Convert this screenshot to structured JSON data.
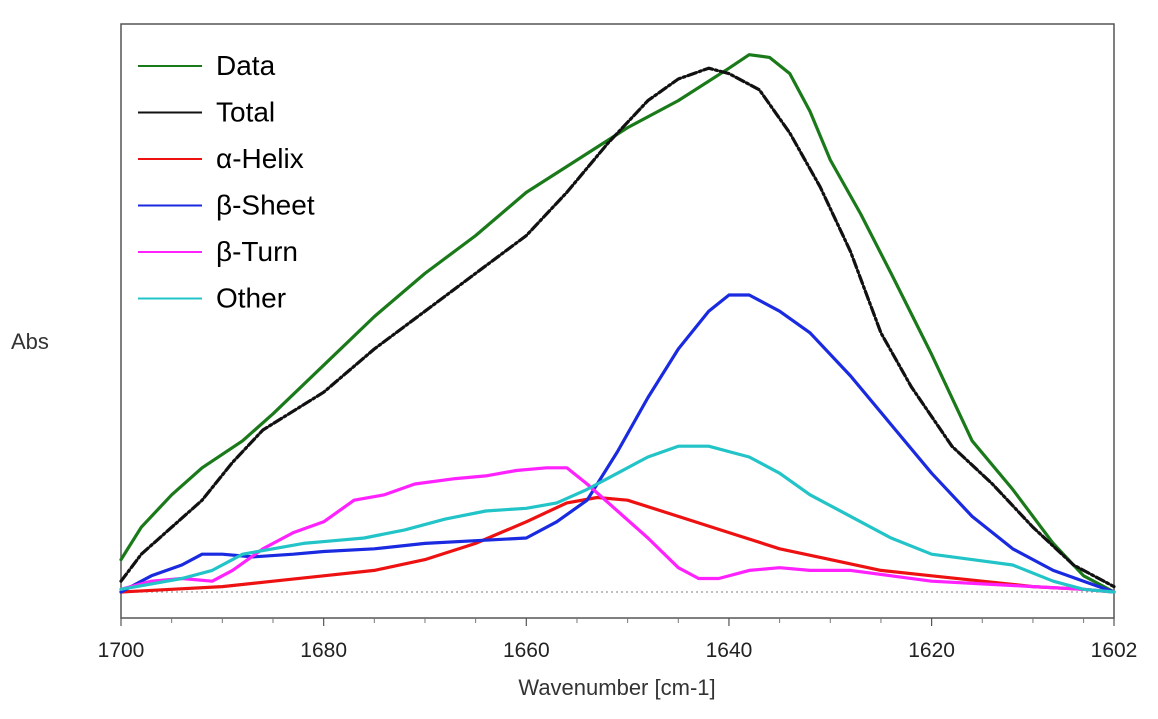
{
  "chart_data": {
    "type": "line",
    "title": "",
    "xlabel": "Wavenumber [cm-1]",
    "ylabel": "Abs",
    "xlim": [
      1700,
      1602
    ],
    "ylim": [
      0,
      1
    ],
    "x_reversed": true,
    "x_ticks": [
      1700,
      1680,
      1660,
      1640,
      1620,
      1602
    ],
    "x_tick_labels": [
      "1700",
      "1680",
      "1660",
      "1640",
      "1620",
      "1602"
    ],
    "grid": false,
    "legend": "top-left",
    "baseline_dotted": true,
    "series": [
      {
        "name": "Data",
        "color": "#1a7a1a",
        "dash": "solid",
        "points": [
          [
            1700,
            0.06
          ],
          [
            1698,
            0.12
          ],
          [
            1695,
            0.18
          ],
          [
            1692,
            0.23
          ],
          [
            1688,
            0.28
          ],
          [
            1685,
            0.33
          ],
          [
            1680,
            0.42
          ],
          [
            1675,
            0.51
          ],
          [
            1670,
            0.59
          ],
          [
            1665,
            0.66
          ],
          [
            1660,
            0.74
          ],
          [
            1655,
            0.8
          ],
          [
            1650,
            0.86
          ],
          [
            1645,
            0.91
          ],
          [
            1640,
            0.97
          ],
          [
            1638,
            0.995
          ],
          [
            1636,
            0.99
          ],
          [
            1634,
            0.96
          ],
          [
            1632,
            0.89
          ],
          [
            1630,
            0.8
          ],
          [
            1627,
            0.7
          ],
          [
            1624,
            0.59
          ],
          [
            1620,
            0.44
          ],
          [
            1616,
            0.28
          ],
          [
            1612,
            0.19
          ],
          [
            1608,
            0.09
          ],
          [
            1605,
            0.03
          ],
          [
            1602,
            0.0
          ]
        ]
      },
      {
        "name": "Total",
        "color": "#111111",
        "dash": "dashdot",
        "points": [
          [
            1700,
            0.02
          ],
          [
            1698,
            0.07
          ],
          [
            1695,
            0.12
          ],
          [
            1692,
            0.17
          ],
          [
            1689,
            0.24
          ],
          [
            1686,
            0.3
          ],
          [
            1680,
            0.37
          ],
          [
            1675,
            0.45
          ],
          [
            1670,
            0.52
          ],
          [
            1665,
            0.59
          ],
          [
            1660,
            0.66
          ],
          [
            1656,
            0.74
          ],
          [
            1652,
            0.83
          ],
          [
            1648,
            0.91
          ],
          [
            1645,
            0.95
          ],
          [
            1642,
            0.97
          ],
          [
            1640,
            0.96
          ],
          [
            1637,
            0.93
          ],
          [
            1634,
            0.85
          ],
          [
            1631,
            0.75
          ],
          [
            1628,
            0.63
          ],
          [
            1625,
            0.48
          ],
          [
            1622,
            0.38
          ],
          [
            1618,
            0.27
          ],
          [
            1614,
            0.2
          ],
          [
            1610,
            0.12
          ],
          [
            1606,
            0.05
          ],
          [
            1602,
            0.01
          ]
        ]
      },
      {
        "name": "α-Helix",
        "color": "#ee1111",
        "dash": "solid",
        "points": [
          [
            1700,
            0.0
          ],
          [
            1695,
            0.005
          ],
          [
            1690,
            0.01
          ],
          [
            1685,
            0.02
          ],
          [
            1680,
            0.03
          ],
          [
            1675,
            0.04
          ],
          [
            1670,
            0.06
          ],
          [
            1665,
            0.09
          ],
          [
            1660,
            0.13
          ],
          [
            1656,
            0.165
          ],
          [
            1653,
            0.175
          ],
          [
            1650,
            0.17
          ],
          [
            1645,
            0.14
          ],
          [
            1640,
            0.11
          ],
          [
            1635,
            0.08
          ],
          [
            1630,
            0.06
          ],
          [
            1625,
            0.04
          ],
          [
            1620,
            0.03
          ],
          [
            1615,
            0.02
          ],
          [
            1610,
            0.01
          ],
          [
            1605,
            0.005
          ],
          [
            1602,
            0.0
          ]
        ]
      },
      {
        "name": "β-Sheet",
        "color": "#1a2ae0",
        "dash": "solid",
        "points": [
          [
            1700,
            0.0
          ],
          [
            1697,
            0.03
          ],
          [
            1694,
            0.05
          ],
          [
            1692,
            0.07
          ],
          [
            1690,
            0.07
          ],
          [
            1687,
            0.065
          ],
          [
            1683,
            0.07
          ],
          [
            1680,
            0.075
          ],
          [
            1675,
            0.08
          ],
          [
            1670,
            0.09
          ],
          [
            1665,
            0.095
          ],
          [
            1660,
            0.1
          ],
          [
            1657,
            0.13
          ],
          [
            1654,
            0.17
          ],
          [
            1651,
            0.26
          ],
          [
            1648,
            0.36
          ],
          [
            1645,
            0.45
          ],
          [
            1642,
            0.52
          ],
          [
            1640,
            0.55
          ],
          [
            1638,
            0.55
          ],
          [
            1635,
            0.52
          ],
          [
            1632,
            0.48
          ],
          [
            1628,
            0.4
          ],
          [
            1624,
            0.31
          ],
          [
            1620,
            0.22
          ],
          [
            1616,
            0.14
          ],
          [
            1612,
            0.08
          ],
          [
            1608,
            0.04
          ],
          [
            1605,
            0.02
          ],
          [
            1602,
            0.0
          ]
        ]
      },
      {
        "name": "β-Turn",
        "color": "#ff22ff",
        "dash": "solid",
        "points": [
          [
            1700,
            0.005
          ],
          [
            1697,
            0.02
          ],
          [
            1694,
            0.025
          ],
          [
            1691,
            0.02
          ],
          [
            1689,
            0.04
          ],
          [
            1686,
            0.08
          ],
          [
            1683,
            0.11
          ],
          [
            1680,
            0.13
          ],
          [
            1677,
            0.17
          ],
          [
            1674,
            0.18
          ],
          [
            1671,
            0.2
          ],
          [
            1667,
            0.21
          ],
          [
            1664,
            0.215
          ],
          [
            1661,
            0.225
          ],
          [
            1658,
            0.23
          ],
          [
            1656,
            0.23
          ],
          [
            1654,
            0.2
          ],
          [
            1651,
            0.15
          ],
          [
            1648,
            0.1
          ],
          [
            1645,
            0.045
          ],
          [
            1643,
            0.025
          ],
          [
            1641,
            0.025
          ],
          [
            1638,
            0.04
          ],
          [
            1635,
            0.045
          ],
          [
            1632,
            0.04
          ],
          [
            1628,
            0.04
          ],
          [
            1624,
            0.03
          ],
          [
            1620,
            0.02
          ],
          [
            1615,
            0.015
          ],
          [
            1610,
            0.01
          ],
          [
            1605,
            0.005
          ],
          [
            1602,
            0.0
          ]
        ]
      },
      {
        "name": "Other",
        "color": "#22c4c8",
        "dash": "solid",
        "points": [
          [
            1700,
            0.005
          ],
          [
            1697,
            0.015
          ],
          [
            1694,
            0.025
          ],
          [
            1691,
            0.04
          ],
          [
            1688,
            0.07
          ],
          [
            1685,
            0.08
          ],
          [
            1682,
            0.09
          ],
          [
            1679,
            0.095
          ],
          [
            1676,
            0.1
          ],
          [
            1672,
            0.115
          ],
          [
            1668,
            0.135
          ],
          [
            1664,
            0.15
          ],
          [
            1660,
            0.155
          ],
          [
            1657,
            0.165
          ],
          [
            1654,
            0.19
          ],
          [
            1651,
            0.22
          ],
          [
            1648,
            0.25
          ],
          [
            1645,
            0.27
          ],
          [
            1642,
            0.27
          ],
          [
            1638,
            0.25
          ],
          [
            1635,
            0.22
          ],
          [
            1632,
            0.18
          ],
          [
            1628,
            0.14
          ],
          [
            1624,
            0.1
          ],
          [
            1620,
            0.07
          ],
          [
            1616,
            0.06
          ],
          [
            1612,
            0.05
          ],
          [
            1608,
            0.02
          ],
          [
            1605,
            0.005
          ],
          [
            1602,
            0.0
          ]
        ]
      }
    ]
  }
}
